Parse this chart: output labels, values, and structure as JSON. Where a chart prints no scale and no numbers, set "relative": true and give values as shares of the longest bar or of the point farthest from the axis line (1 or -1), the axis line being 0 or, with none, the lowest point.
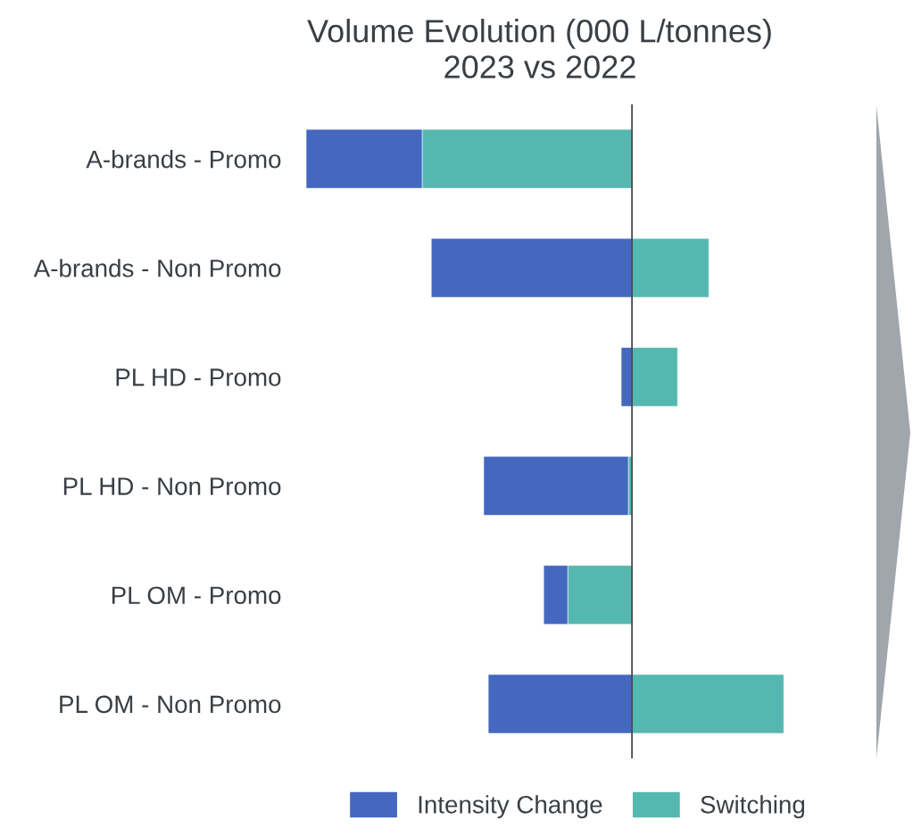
{
  "chart_data": {
    "type": "bar",
    "orientation": "horizontal",
    "stacked": true,
    "relative": true,
    "title": "Volume Evolution (000 L/tonnes)",
    "subtitle": "2023 vs 2022",
    "categories": [
      "A-brands - Promo",
      "A-brands - Non Promo",
      "PL HD - Promo",
      "PL HD - Non Promo",
      "PL OM - Promo",
      "PL OM - Non Promo"
    ],
    "series": [
      {
        "name": "Switching",
        "color": "#55b8b0",
        "values": [
          -0.644,
          0.236,
          0.14,
          -0.011,
          -0.197,
          0.466
        ]
      },
      {
        "name": "Intensity Change",
        "color": "#4468c0",
        "values": [
          -0.356,
          -0.616,
          -0.033,
          -0.444,
          -0.074,
          -0.441
        ]
      }
    ],
    "legend": "bottom",
    "grid": false
  }
}
